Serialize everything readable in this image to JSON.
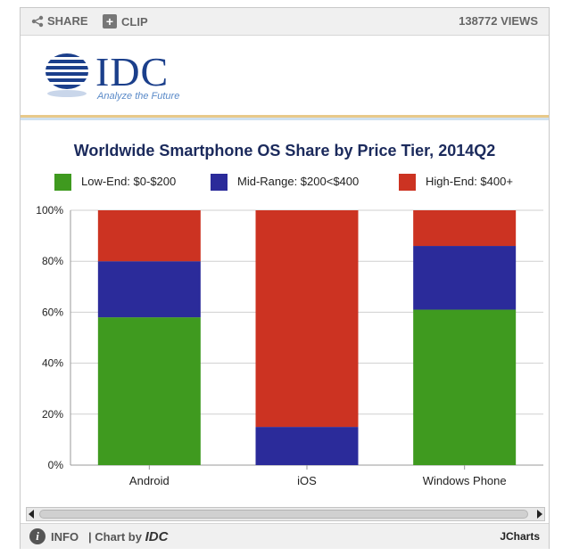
{
  "toolbar": {
    "share_label": "SHARE",
    "clip_label": "CLIP",
    "views": "138772 VIEWS",
    "share_icon": "share-icon",
    "clip_icon": "plus-icon"
  },
  "logo": {
    "brand": "IDC",
    "tagline": "Analyze the Future"
  },
  "footer": {
    "info_label": "INFO",
    "chart_by_prefix": "| Chart by",
    "chart_by_brand": "IDC",
    "jcharts": "JCharts"
  },
  "chart_data": {
    "type": "bar",
    "stacked": true,
    "title": "Worldwide Smartphone OS Share by Price Tier, 2014Q2",
    "categories": [
      "Android",
      "iOS",
      "Windows Phone"
    ],
    "series": [
      {
        "name": "Low-End: $0-$200",
        "color": "#3f9a1f",
        "values": [
          58,
          0,
          61
        ]
      },
      {
        "name": "Mid-Range: $200<$400",
        "color": "#2b2b9a",
        "values": [
          22,
          15,
          25
        ]
      },
      {
        "name": "High-End: $400+",
        "color": "#cc3322",
        "values": [
          20,
          85,
          14
        ]
      }
    ],
    "ylim": [
      0,
      100
    ],
    "yticks": [
      "0%",
      "20%",
      "40%",
      "60%",
      "80%",
      "100%"
    ],
    "grid": true,
    "legend_position": "top"
  }
}
